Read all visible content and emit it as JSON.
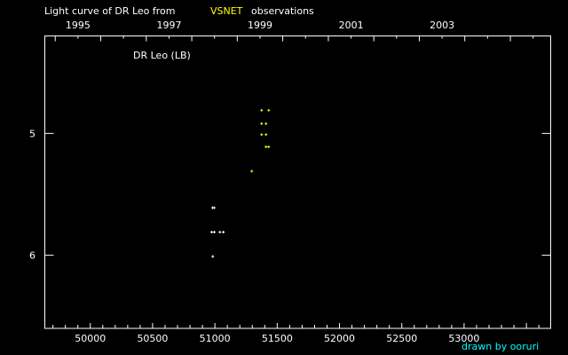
{
  "chart_data": {
    "type": "scatter",
    "title_prefix": "Light curve of DR Leo from",
    "title_source": "VSNET",
    "title_suffix": "observations",
    "object_label": "DR Leo (LB)",
    "credit": "drawn by ooruri",
    "xlim": [
      49635,
      53695
    ],
    "ylim": [
      4.2,
      6.6
    ],
    "y_inverted": true,
    "x_ticks": [
      50000,
      50500,
      51000,
      51500,
      52000,
      52500,
      53000
    ],
    "x_tick_labels": [
      "50000",
      "50500",
      "51000",
      "51500",
      "52000",
      "52500",
      "53000"
    ],
    "y_ticks": [
      5,
      6
    ],
    "y_tick_labels": [
      "5",
      "6"
    ],
    "year_labels": [
      "1995",
      "1997",
      "1999",
      "2001",
      "2003"
    ],
    "grid": false,
    "colors": {
      "background": "#000000",
      "axes": "#ffffff",
      "vsnet": "#ffff00",
      "credit": "#00ffff"
    },
    "series": [
      {
        "color": "#ffff00",
        "points": [
          [
            51375,
            4.81
          ],
          [
            51432,
            4.81
          ],
          [
            51375,
            4.92
          ],
          [
            51410,
            4.92
          ],
          [
            51375,
            5.01
          ],
          [
            51410,
            5.01
          ],
          [
            51410,
            5.11
          ],
          [
            51432,
            5.11
          ],
          [
            51296,
            5.31
          ]
        ]
      },
      {
        "color": "#ffffff",
        "points": [
          [
            50981,
            5.61
          ],
          [
            50995,
            5.61
          ],
          [
            50974,
            5.81
          ],
          [
            50995,
            5.81
          ],
          [
            51040,
            5.81
          ],
          [
            51068,
            5.81
          ],
          [
            50983,
            6.01
          ]
        ]
      }
    ]
  }
}
